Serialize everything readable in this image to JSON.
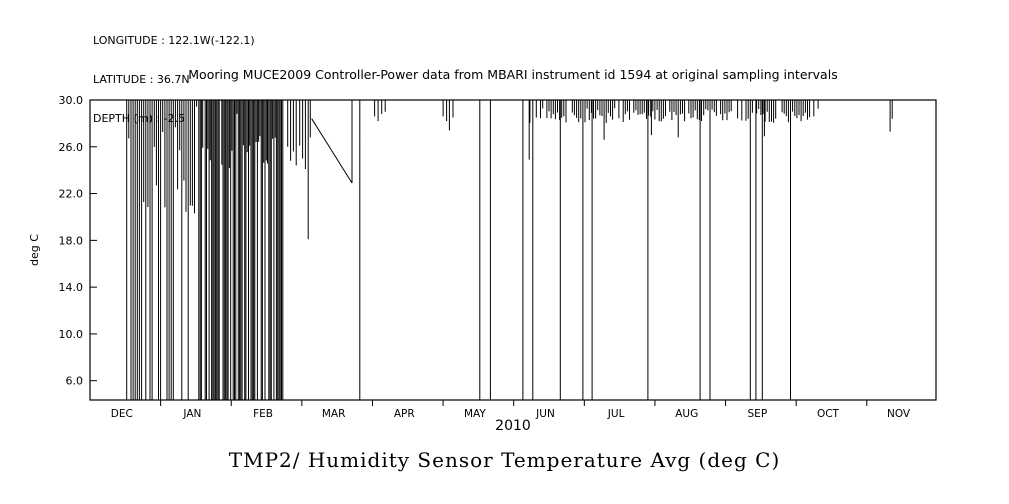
{
  "header": {
    "longitude": "LONGITUDE : 122.1W(-122.1)",
    "latitude": "LATITUDE : 36.7N",
    "depth": "DEPTH (m) : -2.5"
  },
  "colors": {
    "ink": "#000000",
    "background": "#ffffff"
  },
  "chart_data": {
    "type": "line",
    "title": "Mooring MUCE2009 Controller-Power data from MBARI instrument id 1594 at original sampling intervals",
    "ylabel": "deg C",
    "year_label": "2010",
    "caption": "TMP2/ Humidity Sensor Temperature Avg (deg C)",
    "ytick_labels": [
      "30.0",
      "26.0",
      "22.0",
      "18.0",
      "14.0",
      "10.0",
      "6.0"
    ],
    "months": [
      "DEC",
      "JAN",
      "FEB",
      "MAR",
      "APR",
      "MAY",
      "JUN",
      "JUL",
      "AUG",
      "SEP",
      "OCT",
      "NOV"
    ],
    "ylim": [
      4.35,
      30.0
    ],
    "xlim_months": [
      0,
      11.98
    ],
    "month_label_offset": 0.45,
    "grid": false,
    "legend": false,
    "seed": 20091201,
    "dense_bands": [
      {
        "x0": 0.52,
        "x1": 1.56,
        "step": 0.03,
        "skip_prob": 0.05,
        "full_prob": 0.35,
        "low_min": 21.0,
        "low_max": 29.5,
        "mode_prob": 0.5,
        "mode_low": 20.8,
        "mode_spread": 1.0
      },
      {
        "x0": 1.56,
        "x1": 2.73,
        "step": 0.018,
        "skip_prob": 0.02,
        "full_prob": 0.55,
        "low_min": 24.0,
        "low_max": 29.0,
        "mode_prob": 0.3,
        "mode_low": 26.0,
        "mode_spread": 2.0
      },
      {
        "x0": 6.2,
        "x1": 10.34,
        "step": 0.03,
        "skip_prob": 0.12,
        "full_prob": 0.0,
        "low_min": 28.0,
        "low_max": 29.3,
        "mode_prob": 0.0,
        "mode_low": 28.5,
        "mode_spread": 0.0
      }
    ],
    "spikes": [
      [
        2.8,
        26.0
      ],
      [
        2.84,
        24.8
      ],
      [
        2.88,
        25.6
      ],
      [
        2.92,
        24.4
      ],
      [
        2.97,
        26.1
      ],
      [
        3.01,
        25.0
      ],
      [
        3.05,
        24.1
      ],
      [
        3.09,
        18.1
      ],
      [
        3.12,
        26.8
      ],
      [
        3.71,
        22.9
      ],
      [
        4.03,
        28.6
      ],
      [
        4.08,
        28.2
      ],
      [
        4.13,
        28.8
      ],
      [
        4.18,
        29.0
      ],
      [
        5.0,
        28.6
      ],
      [
        5.05,
        28.2
      ],
      [
        5.09,
        27.4
      ],
      [
        5.14,
        28.5
      ],
      [
        6.22,
        24.9
      ],
      [
        7.28,
        26.6
      ],
      [
        7.95,
        27.0
      ],
      [
        8.33,
        26.8
      ],
      [
        9.55,
        26.9
      ],
      [
        11.33,
        27.3
      ],
      [
        11.36,
        28.4
      ]
    ],
    "full_spikes": [
      3.82,
      5.52,
      5.67,
      6.13,
      6.27,
      6.66,
      6.98,
      7.11,
      7.9,
      8.64,
      8.78,
      9.35,
      9.43,
      9.52,
      9.92
    ],
    "segments": [
      [
        [
          3.14,
          28.4
        ],
        [
          3.71,
          22.9
        ]
      ]
    ]
  }
}
